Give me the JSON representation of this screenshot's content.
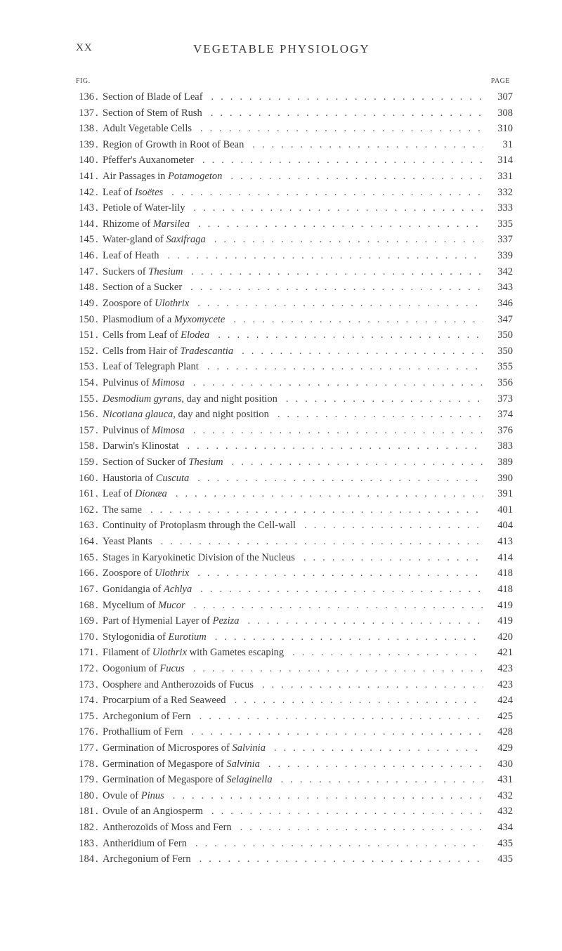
{
  "header": {
    "roman_numeral": "XX",
    "title": "VEGETABLE PHYSIOLOGY",
    "fig_label": "FIG.",
    "page_label": "PAGE"
  },
  "entries": [
    {
      "num": "136",
      "text": "Section of Blade of Leaf",
      "page": "307"
    },
    {
      "num": "137",
      "text": "Section of Stem of Rush",
      "page": "308"
    },
    {
      "num": "138",
      "text": "Adult Vegetable Cells",
      "page": "310"
    },
    {
      "num": "139",
      "text": "Region of Growth in Root of Bean",
      "page": "31"
    },
    {
      "num": "140",
      "text": "Pfeffer's Auxanometer",
      "page": "314"
    },
    {
      "num": "141",
      "text": "Air Passages in <i>Potamogeton</i>",
      "page": "331"
    },
    {
      "num": "142",
      "text": "Leaf of <i>Isoëtes</i>",
      "page": "332"
    },
    {
      "num": "143",
      "text": "Petiole of Water-lily",
      "page": "333"
    },
    {
      "num": "144",
      "text": "Rhizome of <i>Marsilea</i>",
      "page": "335"
    },
    {
      "num": "145",
      "text": "Water-gland of <i>Saxifraga</i>",
      "page": "337"
    },
    {
      "num": "146",
      "text": "Leaf of Heath",
      "page": "339"
    },
    {
      "num": "147",
      "text": "Suckers of <i>Thesium</i>",
      "page": "342"
    },
    {
      "num": "148",
      "text": "Section of a Sucker",
      "page": "343"
    },
    {
      "num": "149",
      "text": "Zoospore of <i>Ulothrix</i>",
      "page": "346"
    },
    {
      "num": "150",
      "text": "Plasmodium of a <i>Myxomycete</i>",
      "page": "347"
    },
    {
      "num": "151",
      "text": "Cells from Leaf of <i>Elodea</i>",
      "page": "350"
    },
    {
      "num": "152",
      "text": "Cells from Hair of <i>Tradescantia</i>",
      "page": "350"
    },
    {
      "num": "153",
      "text": "Leaf of Telegraph Plant",
      "page": "355"
    },
    {
      "num": "154",
      "text": "Pulvinus of <i>Mimosa</i>",
      "page": "356"
    },
    {
      "num": "155",
      "text": "<i>Desmodium gyrans</i>, day and night position",
      "page": "373"
    },
    {
      "num": "156",
      "text": "<i>Nicotiana glauca</i>, day and night position",
      "page": "374"
    },
    {
      "num": "157",
      "text": "Pulvinus of <i>Mimosa</i>",
      "page": "376"
    },
    {
      "num": "158",
      "text": "Darwin's Klinostat",
      "page": "383"
    },
    {
      "num": "159",
      "text": "Section of Sucker of <i>Thesium</i>",
      "page": "389"
    },
    {
      "num": "160",
      "text": "Haustoria of <i>Cuscuta</i>",
      "page": "390"
    },
    {
      "num": "161",
      "text": "Leaf of <i>Dionæa</i>",
      "page": "391"
    },
    {
      "num": "162",
      "text": "The same",
      "page": "401"
    },
    {
      "num": "163",
      "text": "Continuity of Protoplasm through the Cell-wall",
      "page": "404"
    },
    {
      "num": "164",
      "text": "Yeast Plants",
      "page": "413"
    },
    {
      "num": "165",
      "text": "Stages in Karyokinetic Division of the Nucleus",
      "page": "414"
    },
    {
      "num": "166",
      "text": "Zoospore of <i>Ulothrix</i>",
      "page": "418"
    },
    {
      "num": "167",
      "text": "Gonidangia of <i>Achlya</i>",
      "page": "418"
    },
    {
      "num": "168",
      "text": "Mycelium of <i>Mucor</i>",
      "page": "419"
    },
    {
      "num": "169",
      "text": "Part of Hymenial Layer of <i>Peziza</i>",
      "page": "419"
    },
    {
      "num": "170",
      "text": "Stylogonidia of <i>Eurotium</i>",
      "page": "420"
    },
    {
      "num": "171",
      "text": "Filament of <i>Ulothrix</i> with Gametes escaping",
      "page": "421"
    },
    {
      "num": "172",
      "text": "Oogonium of <i>Fucus</i>",
      "page": "423"
    },
    {
      "num": "173",
      "text": "Oosphere and Antherozoids of Fucus",
      "page": "423"
    },
    {
      "num": "174",
      "text": "Procarpium of a Red Seaweed",
      "page": "424"
    },
    {
      "num": "175",
      "text": "Archegonium of Fern",
      "page": "425"
    },
    {
      "num": "176",
      "text": "Prothallium of Fern",
      "page": "428"
    },
    {
      "num": "177",
      "text": "Germination of Microspores of <i>Salvinia</i>",
      "page": "429"
    },
    {
      "num": "178",
      "text": "Germination of Megaspore of <i>Salvinia</i>",
      "page": "430"
    },
    {
      "num": "179",
      "text": "Germination of Megaspore of <i>Selaginella</i>",
      "page": "431"
    },
    {
      "num": "180",
      "text": "Ovule of <i>Pinus</i>",
      "page": "432"
    },
    {
      "num": "181",
      "text": "Ovule of an Angiosperm",
      "page": "432"
    },
    {
      "num": "182",
      "text": "Antherozoïds of Moss and Fern",
      "page": "434"
    },
    {
      "num": "183",
      "text": "Antheridium of Fern",
      "page": "435"
    },
    {
      "num": "184",
      "text": "Archegonium of Fern",
      "page": "435"
    }
  ]
}
